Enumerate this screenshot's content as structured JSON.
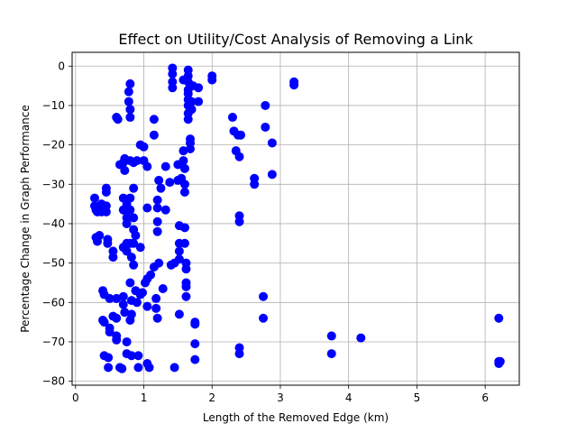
{
  "chart_data": {
    "type": "scatter",
    "title": "Effect on Utility/Cost Analysis of Removing a Link",
    "xlabel": "Length of the Removed Edge (km)",
    "ylabel": "Percentage Change in Graph Performance",
    "xlim": [
      -0.05,
      6.5
    ],
    "ylim": [
      -81,
      3.5
    ],
    "xticks": [
      0,
      1,
      2,
      3,
      4,
      5,
      6
    ],
    "yticks": [
      0,
      -10,
      -20,
      -30,
      -40,
      -50,
      -60,
      -70,
      -80
    ],
    "grid": true,
    "marker_color": "#0000ff",
    "series": [
      {
        "points": [
          [
            0.28,
            -33.5
          ],
          [
            0.28,
            -35.5
          ],
          [
            0.3,
            -36.5
          ],
          [
            0.32,
            -37.0
          ],
          [
            0.3,
            -43.5
          ],
          [
            0.32,
            -44.5
          ],
          [
            0.35,
            -43.0
          ],
          [
            0.38,
            -37.0
          ],
          [
            0.38,
            -35.0
          ],
          [
            0.4,
            -57.0
          ],
          [
            0.42,
            -58.0
          ],
          [
            0.4,
            -64.5
          ],
          [
            0.42,
            -65.0
          ],
          [
            0.42,
            -73.5
          ],
          [
            0.45,
            -31.0
          ],
          [
            0.45,
            -32.0
          ],
          [
            0.45,
            -35.5
          ],
          [
            0.45,
            -37.0
          ],
          [
            0.47,
            -44.0
          ],
          [
            0.47,
            -45.0
          ],
          [
            0.5,
            -59.0
          ],
          [
            0.5,
            -66.5
          ],
          [
            0.5,
            -67.5
          ],
          [
            0.48,
            -74.0
          ],
          [
            0.48,
            -76.5
          ],
          [
            0.55,
            -63.5
          ],
          [
            0.55,
            -47.0
          ],
          [
            0.55,
            -48.5
          ],
          [
            0.6,
            -59.0
          ],
          [
            0.6,
            -64.0
          ],
          [
            0.6,
            -68.5
          ],
          [
            0.6,
            -69.5
          ],
          [
            0.6,
            -13.0
          ],
          [
            0.62,
            -13.5
          ],
          [
            0.65,
            -25.0
          ],
          [
            0.65,
            -76.5
          ],
          [
            0.68,
            -76.8
          ],
          [
            0.7,
            -24.5
          ],
          [
            0.7,
            -36.5
          ],
          [
            0.7,
            -33.5
          ],
          [
            0.7,
            -46.0
          ],
          [
            0.7,
            -58.5
          ],
          [
            0.7,
            -60.5
          ],
          [
            0.72,
            -62.5
          ],
          [
            0.72,
            -23.5
          ],
          [
            0.72,
            -26.5
          ],
          [
            0.75,
            -35.0
          ],
          [
            0.75,
            -37.0
          ],
          [
            0.75,
            -38.5
          ],
          [
            0.75,
            -40.0
          ],
          [
            0.75,
            -45.0
          ],
          [
            0.75,
            -47.0
          ],
          [
            0.75,
            -70.0
          ],
          [
            0.75,
            -73.0
          ],
          [
            0.78,
            -6.5
          ],
          [
            0.78,
            -9.0
          ],
          [
            0.8,
            -4.5
          ],
          [
            0.8,
            -11.0
          ],
          [
            0.8,
            -13.0
          ],
          [
            0.8,
            -24.0
          ],
          [
            0.8,
            -33.5
          ],
          [
            0.8,
            -36.5
          ],
          [
            0.8,
            -45.0
          ],
          [
            0.82,
            -48.5
          ],
          [
            0.8,
            -55.0
          ],
          [
            0.82,
            -59.5
          ],
          [
            0.82,
            -63.0
          ],
          [
            0.8,
            -64.5
          ],
          [
            0.82,
            -73.5
          ],
          [
            0.85,
            -24.5
          ],
          [
            0.85,
            -31.0
          ],
          [
            0.85,
            -38.5
          ],
          [
            0.85,
            -41.5
          ],
          [
            0.85,
            -45.0
          ],
          [
            0.85,
            -50.5
          ],
          [
            0.88,
            -43.0
          ],
          [
            0.88,
            -57.0
          ],
          [
            0.9,
            -24.0
          ],
          [
            0.9,
            -60.0
          ],
          [
            0.92,
            -73.5
          ],
          [
            0.92,
            -76.5
          ],
          [
            0.95,
            -20.0
          ],
          [
            0.95,
            -46.0
          ],
          [
            0.95,
            -58.0
          ],
          [
            0.98,
            -57.5
          ],
          [
            1.0,
            -20.5
          ],
          [
            1.0,
            -24.0
          ],
          [
            1.02,
            -55.0
          ],
          [
            1.05,
            -25.5
          ],
          [
            1.05,
            -36.0
          ],
          [
            1.05,
            -54.0
          ],
          [
            1.05,
            -61.0
          ],
          [
            1.05,
            -75.5
          ],
          [
            1.08,
            -76.5
          ],
          [
            1.1,
            -53.0
          ],
          [
            1.15,
            -13.5
          ],
          [
            1.15,
            -17.5
          ],
          [
            1.15,
            -51.0
          ],
          [
            1.18,
            -59.0
          ],
          [
            1.18,
            -61.5
          ],
          [
            1.2,
            -64.0
          ],
          [
            1.2,
            -34.0
          ],
          [
            1.2,
            -36.0
          ],
          [
            1.2,
            -39.5
          ],
          [
            1.2,
            -42.0
          ],
          [
            1.22,
            -29.0
          ],
          [
            1.22,
            -50.0
          ],
          [
            1.25,
            -31.0
          ],
          [
            1.28,
            -56.5
          ],
          [
            1.32,
            -36.5
          ],
          [
            1.32,
            -25.5
          ],
          [
            1.38,
            -29.5
          ],
          [
            1.4,
            -50.5
          ],
          [
            1.42,
            -0.5
          ],
          [
            1.42,
            -2.0
          ],
          [
            1.42,
            -4.0
          ],
          [
            1.42,
            -5.5
          ],
          [
            1.45,
            -76.5
          ],
          [
            1.45,
            -50.0
          ],
          [
            1.5,
            -25.0
          ],
          [
            1.5,
            -29.0
          ],
          [
            1.52,
            -40.5
          ],
          [
            1.52,
            -45.0
          ],
          [
            1.52,
            -47.0
          ],
          [
            1.52,
            -49.0
          ],
          [
            1.52,
            -63.0
          ],
          [
            1.55,
            -28.5
          ],
          [
            1.58,
            -3.5
          ],
          [
            1.58,
            -21.5
          ],
          [
            1.58,
            -24.0
          ],
          [
            1.6,
            -26.0
          ],
          [
            1.6,
            -30.0
          ],
          [
            1.6,
            -32.0
          ],
          [
            1.6,
            -41.0
          ],
          [
            1.6,
            -45.0
          ],
          [
            1.62,
            -51.5
          ],
          [
            1.62,
            -55.0
          ],
          [
            1.62,
            -56.0
          ],
          [
            1.62,
            -58.5
          ],
          [
            1.62,
            -50.0
          ],
          [
            1.65,
            -1.0
          ],
          [
            1.65,
            -2.5
          ],
          [
            1.65,
            -4.0
          ],
          [
            1.65,
            -6.0
          ],
          [
            1.65,
            -7.0
          ],
          [
            1.65,
            -8.5
          ],
          [
            1.65,
            -10.0
          ],
          [
            1.65,
            -12.0
          ],
          [
            1.65,
            -13.5
          ],
          [
            1.68,
            -18.5
          ],
          [
            1.68,
            -19.5
          ],
          [
            1.68,
            -21.0
          ],
          [
            1.7,
            -9.0
          ],
          [
            1.7,
            -11.0
          ],
          [
            1.72,
            -5.0
          ],
          [
            1.75,
            -65.0
          ],
          [
            1.75,
            -65.5
          ],
          [
            1.75,
            -70.5
          ],
          [
            1.75,
            -74.5
          ],
          [
            1.8,
            -5.5
          ],
          [
            1.8,
            -9.0
          ],
          [
            2.0,
            -2.5
          ],
          [
            2.0,
            -3.5
          ],
          [
            2.3,
            -13.0
          ],
          [
            2.32,
            -16.5
          ],
          [
            2.35,
            -21.5
          ],
          [
            2.38,
            -17.5
          ],
          [
            2.4,
            -23.0
          ],
          [
            2.42,
            -17.5
          ],
          [
            2.4,
            -38.0
          ],
          [
            2.4,
            -39.5
          ],
          [
            2.4,
            -71.5
          ],
          [
            2.4,
            -73.0
          ],
          [
            2.62,
            -28.5
          ],
          [
            2.62,
            -30.0
          ],
          [
            2.75,
            -58.5
          ],
          [
            2.75,
            -64.0
          ],
          [
            2.78,
            -10.0
          ],
          [
            2.78,
            -15.5
          ],
          [
            2.88,
            -19.5
          ],
          [
            2.88,
            -27.5
          ],
          [
            3.2,
            -4.0
          ],
          [
            3.2,
            -4.8
          ],
          [
            3.75,
            -68.5
          ],
          [
            3.75,
            -73.0
          ],
          [
            4.18,
            -69.0
          ],
          [
            6.2,
            -64.0
          ],
          [
            6.2,
            -75.0
          ],
          [
            6.2,
            -75.5
          ],
          [
            6.22,
            -75.0
          ]
        ]
      }
    ]
  }
}
